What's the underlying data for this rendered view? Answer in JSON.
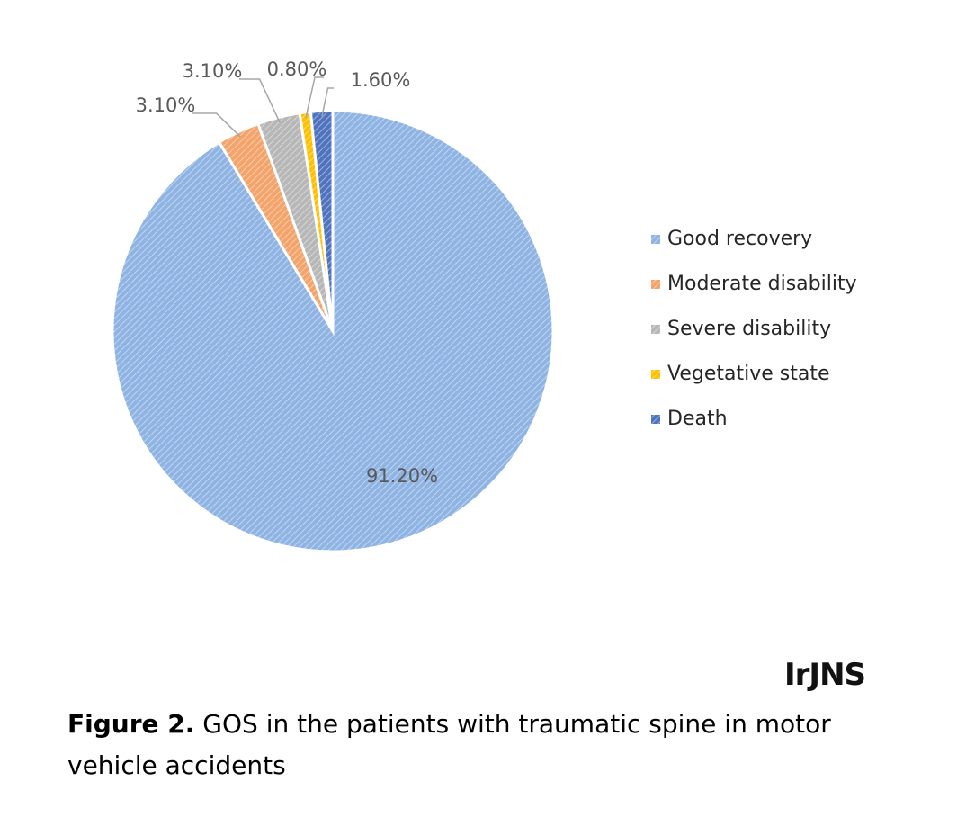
{
  "chart_data": {
    "type": "pie",
    "categories": [
      "Good recovery",
      "Moderate disability",
      "Severe disability",
      "Vegetative state",
      "Death"
    ],
    "values": [
      91.2,
      3.1,
      3.1,
      0.8,
      1.6
    ],
    "value_labels": [
      "91.20%",
      "3.10%",
      "3.10%",
      "0.80%",
      "1.60%"
    ],
    "colors": [
      "#8fb4e3",
      "#f4a46a",
      "#b7b7b7",
      "#ffc000",
      "#4f73be"
    ],
    "legend": "right"
  },
  "caption": {
    "label": "Figure 2.",
    "text": "GOS in the patients with traumatic spine in motor vehicle accidents"
  },
  "logo": "IrJNS"
}
